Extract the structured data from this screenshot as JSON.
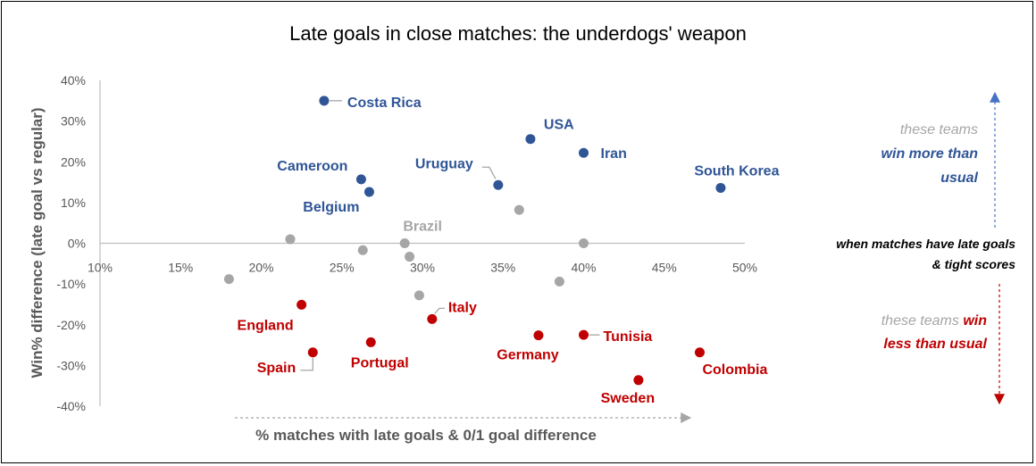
{
  "chart_data": {
    "type": "scatter",
    "title": "Late goals in close matches: the underdogs' weapon",
    "xlabel": "% matches with late goals & 0/1 goal difference",
    "ylabel": "Win% difference (late goal vs regular)",
    "xlim": [
      0.1,
      0.5
    ],
    "ylim": [
      -0.4,
      0.4
    ],
    "x_ticks": [
      "10%",
      "15%",
      "20%",
      "25%",
      "30%",
      "35%",
      "40%",
      "45%",
      "50%"
    ],
    "y_ticks": [
      "40%",
      "30%",
      "20%",
      "10%",
      "0%",
      "-10%",
      "-20%",
      "-30%",
      "-40%"
    ],
    "grid": false,
    "colors": {
      "positive": "#2f5597",
      "negative": "#c00000",
      "neutral": "#a6a6a6"
    },
    "points": [
      {
        "label": "Costa Rica",
        "x": 0.239,
        "y": 0.35,
        "group": "positive"
      },
      {
        "label": "USA",
        "x": 0.367,
        "y": 0.256,
        "group": "positive"
      },
      {
        "label": "Iran",
        "x": 0.4,
        "y": 0.222,
        "group": "positive"
      },
      {
        "label": "Cameroon",
        "x": 0.262,
        "y": 0.157,
        "group": "positive"
      },
      {
        "label": "Uruguay",
        "x": 0.347,
        "y": 0.143,
        "group": "positive"
      },
      {
        "label": "South Korea",
        "x": 0.485,
        "y": 0.136,
        "group": "positive"
      },
      {
        "label": "Belgium",
        "x": 0.267,
        "y": 0.126,
        "group": "positive"
      },
      {
        "label": "Brazil",
        "x": 0.289,
        "y": 0.0,
        "group": "neutral"
      },
      {
        "label": "",
        "x": 0.36,
        "y": 0.082,
        "group": "neutral"
      },
      {
        "label": "",
        "x": 0.218,
        "y": 0.01,
        "group": "neutral"
      },
      {
        "label": "",
        "x": 0.4,
        "y": 0.0,
        "group": "neutral"
      },
      {
        "label": "",
        "x": 0.263,
        "y": -0.017,
        "group": "neutral"
      },
      {
        "label": "",
        "x": 0.292,
        "y": -0.033,
        "group": "neutral"
      },
      {
        "label": "",
        "x": 0.18,
        "y": -0.088,
        "group": "neutral"
      },
      {
        "label": "",
        "x": 0.385,
        "y": -0.094,
        "group": "neutral"
      },
      {
        "label": "",
        "x": 0.298,
        "y": -0.128,
        "group": "neutral"
      },
      {
        "label": "England",
        "x": 0.225,
        "y": -0.151,
        "group": "negative"
      },
      {
        "label": "Italy",
        "x": 0.306,
        "y": -0.186,
        "group": "negative"
      },
      {
        "label": "Tunisia",
        "x": 0.4,
        "y": -0.225,
        "group": "negative"
      },
      {
        "label": "Germany",
        "x": 0.372,
        "y": -0.226,
        "group": "negative"
      },
      {
        "label": "Portugal",
        "x": 0.268,
        "y": -0.243,
        "group": "negative"
      },
      {
        "label": "Spain",
        "x": 0.232,
        "y": -0.268,
        "group": "negative"
      },
      {
        "label": "Colombia",
        "x": 0.472,
        "y": -0.268,
        "group": "negative"
      },
      {
        "label": "Sweden",
        "x": 0.434,
        "y": -0.336,
        "group": "negative"
      }
    ],
    "annotations": {
      "top_line1": "these teams",
      "top_line2": "win more than",
      "top_line3": "usual",
      "middle_line1": "when matches have late goals",
      "middle_line2": "& tight scores",
      "bottom_line1": "these teams ",
      "bottom_line1_emph": "win",
      "bottom_line2": "less than usual"
    }
  }
}
